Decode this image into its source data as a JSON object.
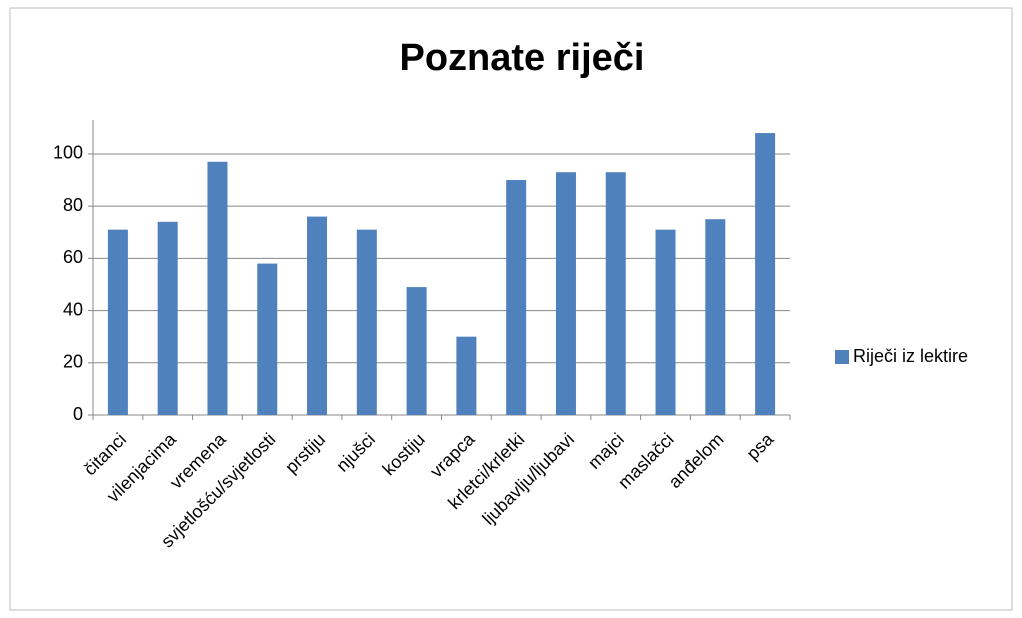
{
  "chart_data": {
    "type": "bar",
    "title": "Poznate riječi",
    "categories": [
      "čitanci",
      "vilenjacima",
      "vremena",
      "svjetlošću/svjetlosti",
      "prstiju",
      "njušci",
      "kostiju",
      "vrapca",
      "krletci/krletki",
      "ljubavlju/ljubavi",
      "majci",
      "maslačci",
      "anđelom",
      "psa"
    ],
    "series": [
      {
        "name": "Riječi iz lektire",
        "color": "#4f81bd",
        "values": [
          71,
          74,
          97,
          58,
          76,
          71,
          49,
          30,
          90,
          93,
          93,
          71,
          75,
          108
        ]
      }
    ],
    "ylim": [
      0,
      113
    ],
    "yticks": [
      0,
      20,
      40,
      60,
      80,
      100
    ],
    "grid": true,
    "legend": "right"
  }
}
